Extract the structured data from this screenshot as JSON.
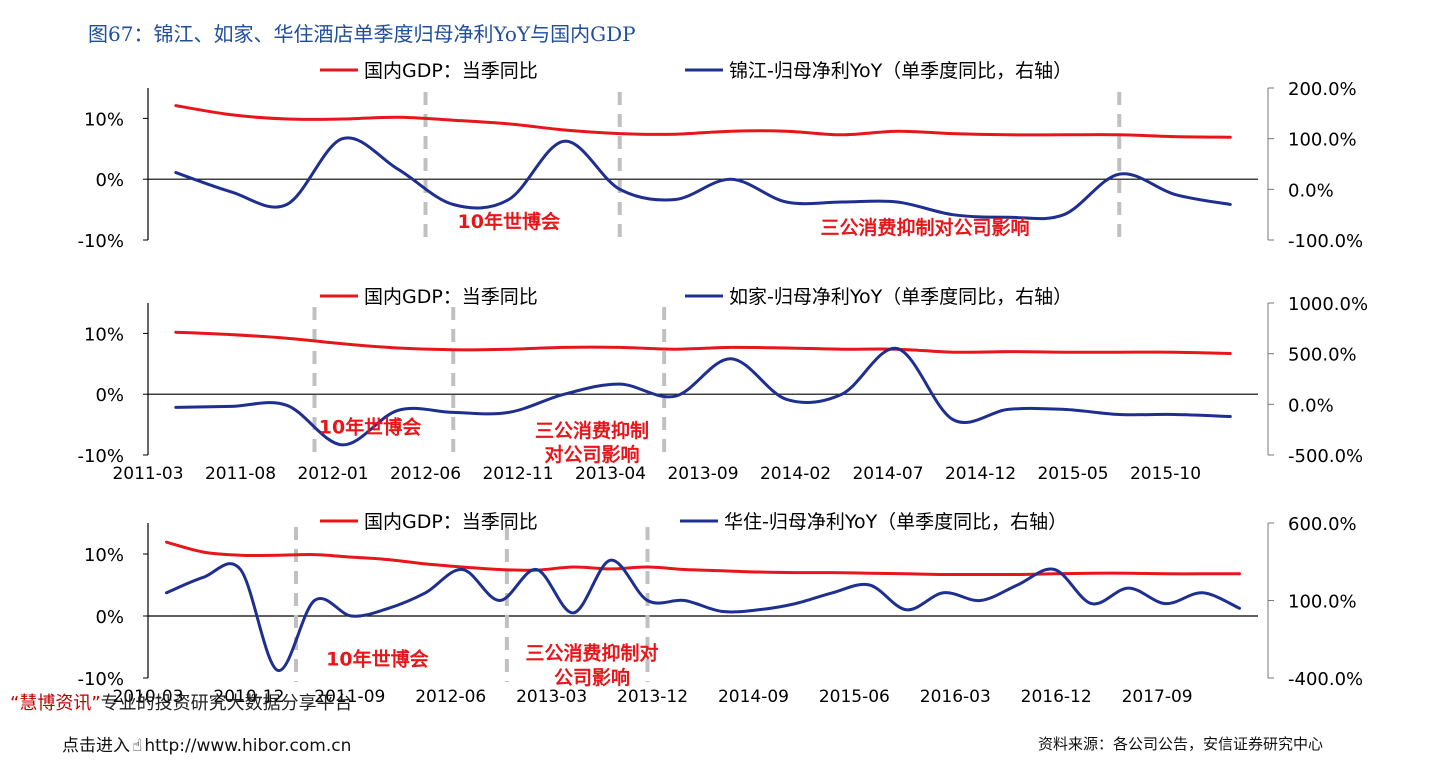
{
  "figure_title": "图67：锦江、如家、华住酒店单季度归母净利YoY与国内GDP",
  "footer": {
    "watermark_brand": "“慧博资讯”",
    "watermark_text": "专业的投资研究大数据分享平台",
    "hibor_prefix": "点击进入",
    "hibor_url": "http://www.hibor.com.cn",
    "source": "资料来源：各公司公告，安信证券研究中心"
  },
  "colors": {
    "gdp": "#e8161b",
    "company": "#1f2f8f",
    "vline": "#c0c0c0",
    "annotation": "#e8161b",
    "title": "#1f4e9c"
  },
  "chart_data": [
    {
      "type": "line",
      "legend": [
        "国内GDP：当季同比",
        "锦江-归母净利YoY（单季度同比，右轴）"
      ],
      "left_ticks": [
        "10%",
        "0%",
        "-10%"
      ],
      "right_ticks": [
        "200.0%",
        "100.0%",
        "0.0%",
        "-100.0%"
      ],
      "ylim_left": [
        -10,
        15
      ],
      "ylim_right": [
        -100,
        200
      ],
      "x_count": 20,
      "x_ticks": [],
      "series": [
        {
          "name": "国内GDP：当季同比",
          "axis": "left",
          "x": [
            0,
            1,
            2,
            3,
            4,
            5,
            6,
            7,
            8,
            9,
            10,
            11,
            12,
            13,
            14,
            15,
            16,
            17,
            18,
            19
          ],
          "values": [
            12.1,
            10.6,
            9.9,
            9.9,
            10.2,
            9.7,
            9.1,
            8.1,
            7.5,
            7.4,
            7.9,
            7.9,
            7.3,
            7.9,
            7.5,
            7.3,
            7.3,
            7.3,
            7.0,
            6.9
          ]
        },
        {
          "name": "锦江-归母净利YoY（单季度同比，右轴）",
          "axis": "right",
          "x": [
            0,
            1,
            2,
            3,
            4,
            5,
            6,
            7,
            8,
            9,
            10,
            11,
            12,
            13,
            14,
            15,
            16,
            17,
            18,
            19
          ],
          "values": [
            33,
            -5,
            -30,
            100,
            40,
            -30,
            -20,
            95,
            0,
            -20,
            20,
            -25,
            -25,
            -25,
            -50,
            -55,
            -50,
            30,
            -10,
            -30
          ]
        }
      ],
      "vlines": [
        4.5,
        8,
        17
      ],
      "annotations": [
        {
          "text": "10年世博会",
          "x": 6,
          "y": -8
        },
        {
          "text": "三公消费抑制对公司影响",
          "x": 13.5,
          "y": -9
        }
      ]
    },
    {
      "type": "line",
      "legend": [
        "国内GDP：当季同比",
        "如家-归母净利YoY（单季度同比，右轴）"
      ],
      "left_ticks": [
        "10%",
        "0%",
        "-10%"
      ],
      "right_ticks": [
        "1000.0%",
        "500.0%",
        "0.0%",
        "-500.0%"
      ],
      "ylim_left": [
        -10,
        15
      ],
      "ylim_right": [
        -500,
        1000
      ],
      "x_count": 20,
      "x_ticks": [
        "2011-03",
        "2011-08",
        "2012-01",
        "2012-06",
        "2012-11",
        "2013-04",
        "2013-09",
        "2014-02",
        "2014-07",
        "2014-12",
        "2015-05",
        "2015-10"
      ],
      "series": [
        {
          "name": "国内GDP：当季同比",
          "axis": "left",
          "x": [
            0,
            1,
            2,
            3,
            4,
            5,
            6,
            7,
            8,
            9,
            10,
            11,
            12,
            13,
            14,
            15,
            16,
            17,
            18,
            19
          ],
          "values": [
            10.2,
            9.8,
            9.2,
            8.3,
            7.6,
            7.3,
            7.4,
            7.7,
            7.7,
            7.4,
            7.7,
            7.6,
            7.4,
            7.4,
            6.9,
            7.0,
            6.9,
            6.9,
            6.9,
            6.7
          ]
        },
        {
          "name": "如家-归母净利YoY（单季度同比，右轴）",
          "axis": "right",
          "x": [
            0,
            1,
            2,
            3,
            4,
            5,
            6,
            7,
            8,
            9,
            10,
            11,
            12,
            13,
            14,
            15,
            16,
            17,
            18,
            19
          ],
          "values": [
            -30,
            -20,
            -10,
            -400,
            -60,
            -80,
            -80,
            100,
            200,
            80,
            450,
            50,
            100,
            550,
            -150,
            -50,
            -50,
            -100,
            -100,
            -120
          ]
        }
      ],
      "vlines": [
        2.5,
        5,
        8.8
      ],
      "annotations": [
        {
          "text": "10年世博会",
          "x": 3.5,
          "y": -6.5
        },
        {
          "text": "三公消费抑制",
          "x": 7.5,
          "y": -7
        },
        {
          "text": "对公司影响",
          "x": 7.5,
          "y": -11
        }
      ]
    },
    {
      "type": "line",
      "legend": [
        "国内GDP：当季同比",
        "华住-归母净利YoY（单季度同比，右轴）"
      ],
      "left_ticks": [
        "10%",
        "0%",
        "-10%"
      ],
      "right_ticks": [
        "600.0%",
        "100.0%",
        "-400.0%"
      ],
      "ylim_left": [
        -10,
        15
      ],
      "ylim_right": [
        -400,
        600
      ],
      "x_count": 30,
      "x_ticks": [
        "2010-03",
        "2010-12",
        "2011-09",
        "2012-06",
        "2013-03",
        "2013-12",
        "2014-09",
        "2015-06",
        "2016-03",
        "2016-12",
        "2017-09"
      ],
      "series": [
        {
          "name": "国内GDP：当季同比",
          "axis": "left",
          "x": [
            0,
            1,
            2,
            3,
            4,
            5,
            6,
            7,
            8,
            9,
            10,
            11,
            12,
            13,
            14,
            15,
            16,
            17,
            18,
            19,
            20,
            21,
            22,
            23,
            24,
            25,
            26,
            27,
            28,
            29
          ],
          "values": [
            11.9,
            10.3,
            9.8,
            9.8,
            9.9,
            9.5,
            9.1,
            8.4,
            7.9,
            7.5,
            7.4,
            7.9,
            7.6,
            7.9,
            7.5,
            7.3,
            7.1,
            7.0,
            7.0,
            6.9,
            6.8,
            6.7,
            6.7,
            6.7,
            6.8,
            6.9,
            6.9,
            6.8,
            6.8,
            6.8
          ]
        },
        {
          "name": "华住-归母净利YoY（单季度同比，右轴）",
          "axis": "right",
          "x": [
            0,
            1,
            2,
            3,
            4,
            5,
            6,
            7,
            8,
            9,
            10,
            11,
            12,
            13,
            14,
            15,
            16,
            17,
            18,
            19,
            20,
            21,
            22,
            23,
            24,
            25,
            26,
            27,
            28,
            29
          ],
          "values": [
            150,
            250,
            300,
            -350,
            100,
            0,
            50,
            150,
            300,
            100,
            300,
            20,
            360,
            100,
            100,
            30,
            40,
            80,
            150,
            200,
            40,
            150,
            100,
            200,
            300,
            80,
            180,
            80,
            150,
            50
          ]
        }
      ],
      "vlines": [
        3.5,
        9.2,
        13
      ],
      "annotations": [
        {
          "text": "10年世博会",
          "x": 5.7,
          "y": -8
        },
        {
          "text": "三公消费抑制对",
          "x": 11.5,
          "y": -7
        },
        {
          "text": "公司影响",
          "x": 11.5,
          "y": -11
        }
      ]
    }
  ]
}
